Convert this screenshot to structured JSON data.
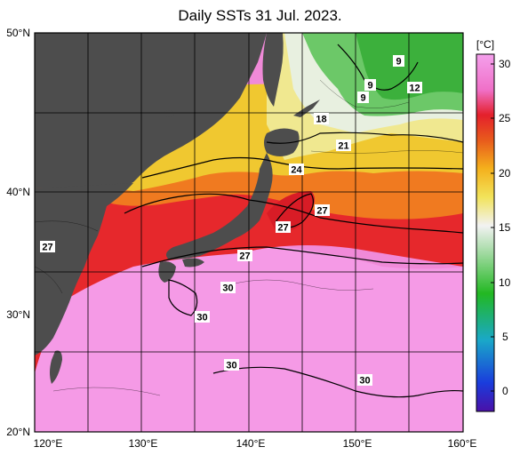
{
  "title": "Daily SSTs 31 Jul. 2023.",
  "map": {
    "lat_ticks": [
      "20°N",
      "30°N",
      "40°N",
      "50°N"
    ],
    "lon_ticks": [
      "120°E",
      "130°E",
      "140°E",
      "150°E",
      "160°E"
    ],
    "land_color": "#4d4d4d",
    "grid_color": "#000000"
  },
  "colorbar": {
    "unit": "[°C]",
    "ticks": [
      "30",
      "25",
      "20",
      "15",
      "10",
      "5",
      "0"
    ],
    "stops": [
      "#4a10a8",
      "#1a3cdc",
      "#1aa8c8",
      "#22b822",
      "#a8dca8",
      "#f2f2f2",
      "#f2e35a",
      "#f4b01c",
      "#e85a1c",
      "#e4202c",
      "#f070c8",
      "#f4a0ec"
    ]
  },
  "contour_labels": [
    "9",
    "9",
    "9",
    "12",
    "18",
    "21",
    "24",
    "27",
    "27",
    "27",
    "27",
    "30",
    "30",
    "30",
    "30"
  ]
}
